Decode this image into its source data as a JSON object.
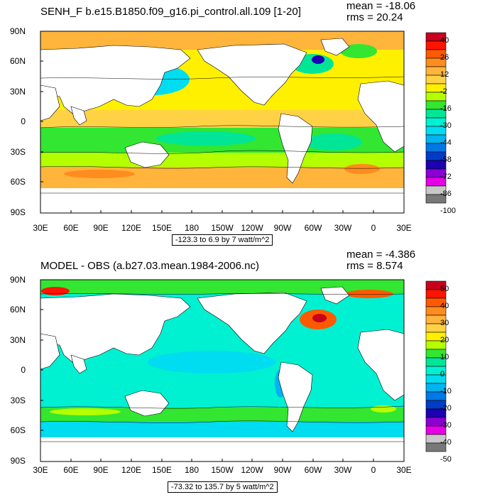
{
  "panels": [
    {
      "title": "SENH_F b.e15.B1850.f09_g16.pi_control.all.109 [1-20]",
      "mean": "mean = -18.06",
      "rms": "rms = 20.24",
      "range": "-123.3 to 6.9 by 7 watt/m^2",
      "lat_labels": [
        "90N",
        "60N",
        "30N",
        "0",
        "30S",
        "60S",
        "90S"
      ],
      "lon_labels": [
        "30E",
        "60E",
        "90E",
        "120E",
        "150E",
        "180",
        "150W",
        "120W",
        "90W",
        "60W",
        "30W",
        "0",
        "30E"
      ],
      "legend_labels": [
        "40",
        "26",
        "12",
        "-2",
        "-16",
        "-30",
        "-44",
        "-58",
        "-72",
        "-86",
        "-100"
      ],
      "legend_colors": [
        "#c8001e",
        "#ff1400",
        "#ff5a00",
        "#ff8c1e",
        "#ffb43c",
        "#ffd246",
        "#fff000",
        "#b4ff00",
        "#32e632",
        "#00e696",
        "#00f0d2",
        "#00dcf0",
        "#00b4f0",
        "#0078e6",
        "#003cc8",
        "#1e00b4",
        "#8c00d2",
        "#e600e6",
        "#c8c8c8",
        "#787878"
      ]
    },
    {
      "title": "MODEL - OBS (a.b27.03.mean.1984-2006.nc)",
      "mean": "mean = -4.386",
      "rms": "rms = 8.574",
      "range": "-73.32 to 135.7 by 5 watt/m^2",
      "lat_labels": [
        "90N",
        "60N",
        "30N",
        "0",
        "30S",
        "60S",
        "90S"
      ],
      "lon_labels": [
        "30E",
        "60E",
        "90E",
        "120E",
        "150E",
        "180",
        "150W",
        "120W",
        "90W",
        "60W",
        "30W",
        "0",
        "30E"
      ],
      "legend_labels": [
        "50",
        "40",
        "30",
        "20",
        "10",
        "0",
        "-10",
        "-20",
        "-30",
        "-40",
        "-50"
      ],
      "legend_colors": [
        "#c8001e",
        "#ff1400",
        "#ff5a00",
        "#ff8c1e",
        "#ffb43c",
        "#ffd246",
        "#fff000",
        "#b4ff00",
        "#32e632",
        "#00e696",
        "#00f0d2",
        "#00dcf0",
        "#00b4f0",
        "#0078e6",
        "#003cc8",
        "#1e00b4",
        "#8c00d2",
        "#e600e6",
        "#c8c8c8",
        "#787878"
      ]
    }
  ]
}
